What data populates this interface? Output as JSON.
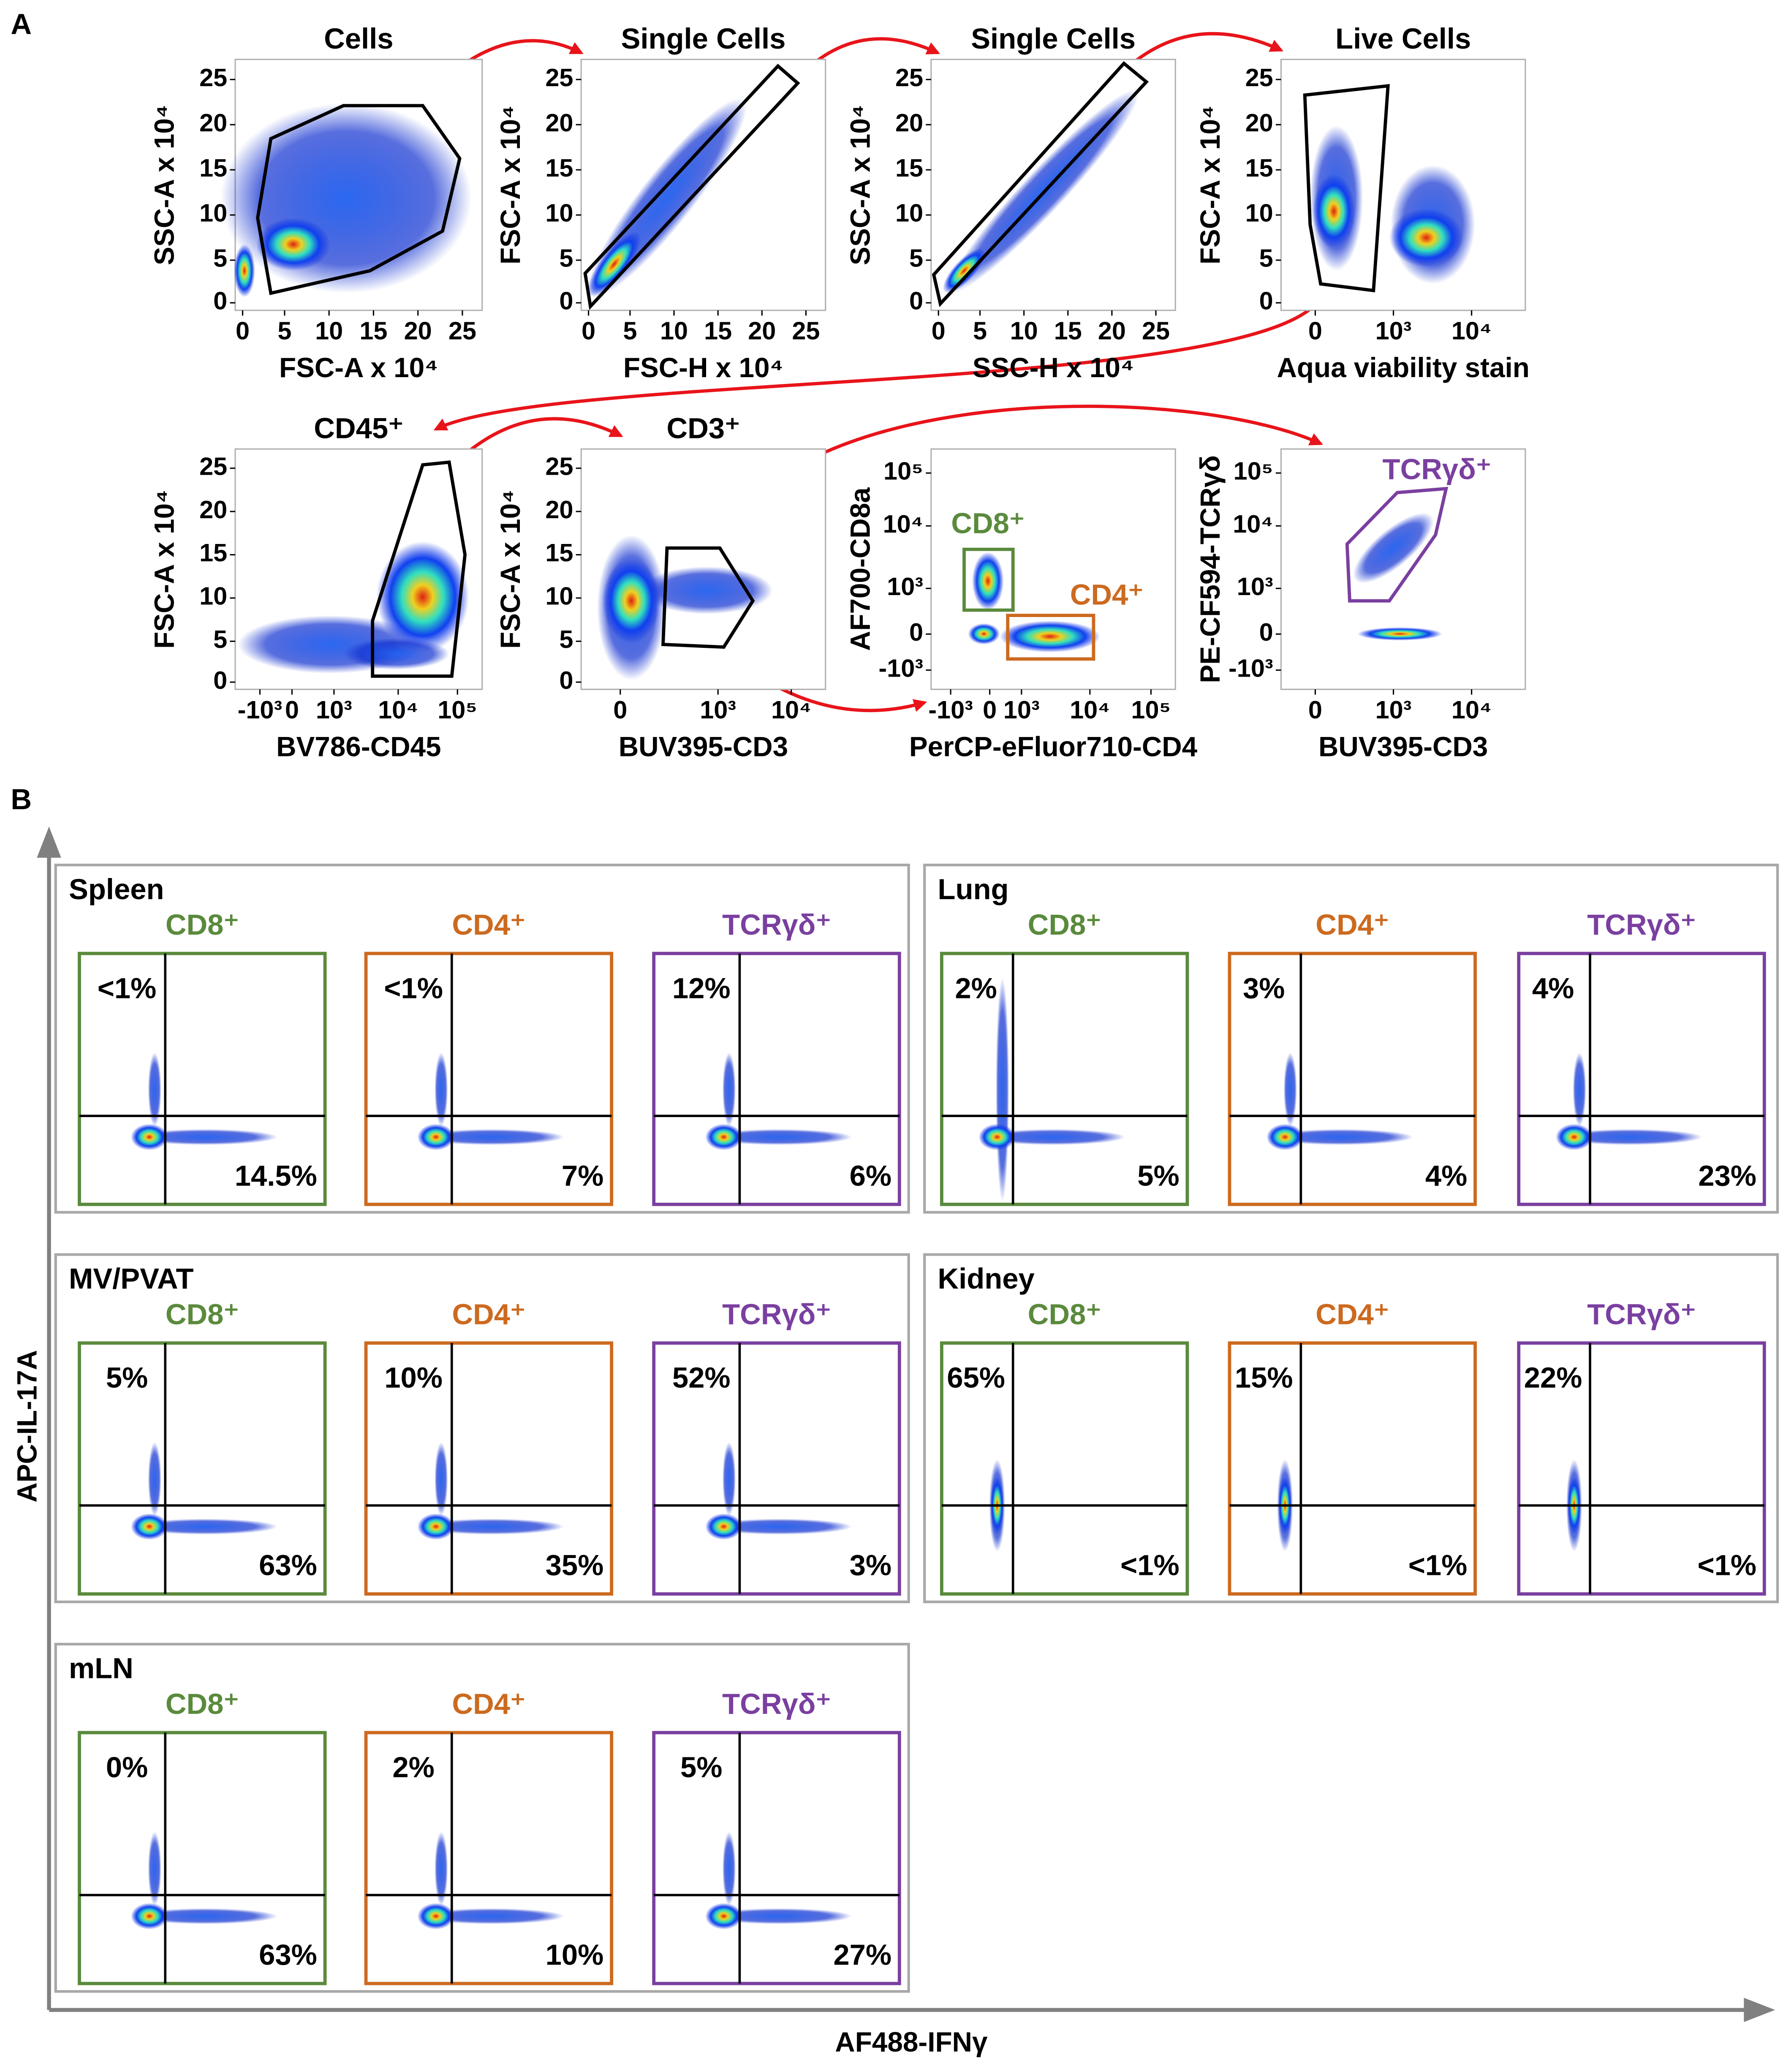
{
  "panel_a": {
    "label": "A",
    "plots": [
      {
        "title": "Cells",
        "xlabel": "FSC-A x 10⁴",
        "ylabel": "SSC-A x 10⁴",
        "xticks": [
          "0",
          "5",
          "10",
          "15",
          "20",
          "25"
        ],
        "yticks": [
          "0",
          "5",
          "10",
          "15",
          "20",
          "25"
        ]
      },
      {
        "title": "Single Cells",
        "xlabel": "FSC-H x 10⁴",
        "ylabel": "FSC-A x 10⁴",
        "xticks": [
          "0",
          "5",
          "10",
          "15",
          "20",
          "25"
        ],
        "yticks": [
          "0",
          "5",
          "10",
          "15",
          "20",
          "25"
        ]
      },
      {
        "title": "Single Cells",
        "xlabel": "SSC-H x 10⁴",
        "ylabel": "SSC-A x 10⁴",
        "xticks": [
          "0",
          "5",
          "10",
          "15",
          "20",
          "25"
        ],
        "yticks": [
          "0",
          "5",
          "10",
          "15",
          "20",
          "25"
        ]
      },
      {
        "title": "Live Cells",
        "xlabel": "Aqua viability stain",
        "ylabel": "FSC-A x 10⁴",
        "xticks": [
          "0",
          "10³",
          "10⁴"
        ],
        "yticks": [
          "0",
          "5",
          "10",
          "15",
          "20",
          "25"
        ]
      },
      {
        "title": "CD45⁺",
        "xlabel": "BV786-CD45",
        "ylabel": "FSC-A x 10⁴",
        "xticks": [
          "-10³",
          "0",
          "10³",
          "10⁴",
          "10⁵"
        ],
        "yticks": [
          "0",
          "5",
          "10",
          "15",
          "20",
          "25"
        ]
      },
      {
        "title": "CD3⁺",
        "xlabel": "BUV395-CD3",
        "ylabel": "FSC-A x 10⁴",
        "xticks": [
          "0",
          "10³",
          "10⁴"
        ],
        "yticks": [
          "0",
          "5",
          "10",
          "15",
          "20",
          "25"
        ]
      },
      {
        "xlabel": "PerCP-eFluor710-CD4",
        "ylabel": "AF700-CD8a",
        "xticks": [
          "-10³",
          "0",
          "10³",
          "10⁴",
          "10⁵"
        ],
        "yticks": [
          "-10³",
          "0",
          "10³",
          "10⁴",
          "10⁵"
        ],
        "gates": [
          "CD8⁺",
          "CD4⁺"
        ]
      },
      {
        "xlabel": "BUV395-CD3",
        "ylabel": "PE-CF594-TCRγδ",
        "xticks": [
          "0",
          "10³",
          "10⁴"
        ],
        "yticks": [
          "-10³",
          "0",
          "10³",
          "10⁴",
          "10⁵"
        ],
        "gates": [
          "TCRγδ⁺"
        ]
      }
    ]
  },
  "panel_b": {
    "label": "B",
    "y_axis_label": "APC-IL-17A",
    "x_axis_label": "AF488-IFNγ",
    "tissues": [
      {
        "name": "Spleen",
        "subsets": [
          {
            "name": "CD8⁺",
            "upper": "<1%",
            "lower": "14.5%"
          },
          {
            "name": "CD4⁺",
            "upper": "<1%",
            "lower": "7%"
          },
          {
            "name": "TCRγδ⁺",
            "upper": "12%",
            "lower": "6%"
          }
        ]
      },
      {
        "name": "Lung",
        "subsets": [
          {
            "name": "CD8⁺",
            "upper": "2%",
            "lower": "5%"
          },
          {
            "name": "CD4⁺",
            "upper": "3%",
            "lower": "4%"
          },
          {
            "name": "TCRγδ⁺",
            "upper": "4%",
            "lower": "23%"
          }
        ]
      },
      {
        "name": "MV/PVAT",
        "subsets": [
          {
            "name": "CD8⁺",
            "upper": "5%",
            "lower": "63%"
          },
          {
            "name": "CD4⁺",
            "upper": "10%",
            "lower": "35%"
          },
          {
            "name": "TCRγδ⁺",
            "upper": "52%",
            "lower": "3%"
          }
        ]
      },
      {
        "name": "Kidney",
        "subsets": [
          {
            "name": "CD8⁺",
            "upper": "65%",
            "lower": "<1%"
          },
          {
            "name": "CD4⁺",
            "upper": "15%",
            "lower": "<1%"
          },
          {
            "name": "TCRγδ⁺",
            "upper": "22%",
            "lower": "<1%"
          }
        ]
      },
      {
        "name": "mLN",
        "subsets": [
          {
            "name": "CD8⁺",
            "upper": "0%",
            "lower": "63%"
          },
          {
            "name": "CD4⁺",
            "upper": "2%",
            "lower": "10%"
          },
          {
            "name": "TCRγδ⁺",
            "upper": "5%",
            "lower": "27%"
          }
        ]
      }
    ]
  }
}
